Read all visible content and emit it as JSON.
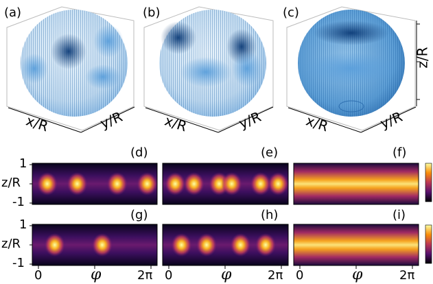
{
  "panels": {
    "top": [
      "(a)",
      "(b)",
      "(c)"
    ],
    "mid": [
      "(d)",
      "(e)",
      "(f)"
    ],
    "bot": [
      "(g)",
      "(h)",
      "(i)"
    ]
  },
  "sphere_axes": {
    "x": "x/R",
    "y": "y/R",
    "z": "z/R"
  },
  "map_axes": {
    "ylabel": "z/R",
    "y_ticks": [
      "1",
      "-1"
    ],
    "x_ticks": [
      "0",
      "φ",
      "2π"
    ]
  },
  "colors": {
    "sphere_dark": "#0d3c78",
    "sphere_light": "#7fb8e6",
    "inferno_low": "#000004",
    "inferno_mid": "#b73779",
    "inferno_high": "#fcffa4"
  },
  "chart_data": [
    {
      "type": "heatmap",
      "panel": "(d)",
      "bright_spots_phi_fraction": [
        0.12,
        0.36,
        0.68,
        0.92
      ],
      "intensity": "localized"
    },
    {
      "type": "heatmap",
      "panel": "(e)",
      "bright_spots_phi_fraction": [
        0.1,
        0.25,
        0.45,
        0.55,
        0.78,
        0.92
      ],
      "intensity": "localized"
    },
    {
      "type": "heatmap",
      "panel": "(f)",
      "band": "continuous",
      "intensity": "high"
    },
    {
      "type": "heatmap",
      "panel": "(g)",
      "bright_spots_phi_fraction": [
        0.18,
        0.56
      ],
      "intensity": "localized"
    },
    {
      "type": "heatmap",
      "panel": "(h)",
      "bright_spots_phi_fraction": [
        0.15,
        0.35,
        0.62,
        0.82
      ],
      "intensity": "localized"
    },
    {
      "type": "heatmap",
      "panel": "(i)",
      "band": "continuous",
      "intensity": "high"
    }
  ]
}
